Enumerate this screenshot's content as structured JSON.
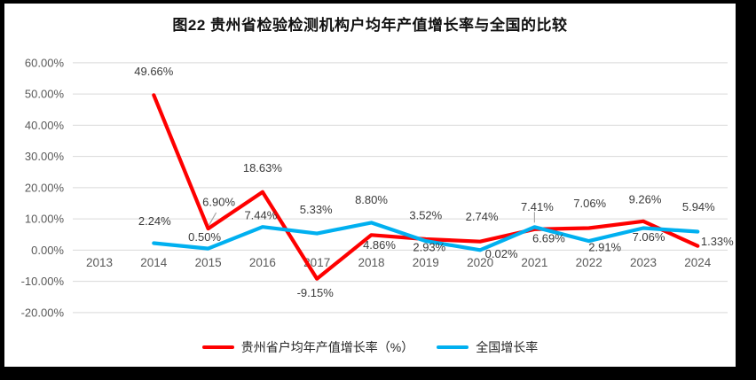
{
  "title": "图22 贵州省检验检测机构户均年产值增长率与全国的比较",
  "chart_data": {
    "type": "line",
    "title": "图22 贵州省检验检测机构户均年产值增长率与全国的比较",
    "categories": [
      "2013",
      "2014",
      "2015",
      "2016",
      "2017",
      "2018",
      "2019",
      "2020",
      "2021",
      "2022",
      "2023",
      "2024"
    ],
    "series": [
      {
        "name": "贵州省户均年产值增长率（%）",
        "color": "#FE0000",
        "values": [
          null,
          49.66,
          6.9,
          18.63,
          -9.15,
          4.86,
          3.52,
          2.74,
          6.69,
          7.06,
          9.26,
          1.33
        ],
        "labels": [
          null,
          "49.66%",
          "6.90%",
          "18.63%",
          "-9.15%",
          "4.86%",
          "3.52%",
          "2.74%",
          "6.69%",
          "7.06%",
          "9.26%",
          "1.33%"
        ]
      },
      {
        "name": "全国增长率",
        "color": "#00B0F0",
        "values": [
          null,
          2.24,
          0.5,
          7.44,
          5.33,
          8.8,
          2.93,
          0.02,
          7.41,
          2.91,
          7.06,
          5.94
        ],
        "labels": [
          null,
          "2.24%",
          "0.50%",
          "7.44%",
          "5.33%",
          "8.80%",
          "2.93%",
          "0.02%",
          "7.41%",
          "2.91%",
          "7.06%",
          "5.94%"
        ]
      }
    ],
    "xlabel": "",
    "ylabel": "",
    "ylim": [
      -20,
      60
    ],
    "grid": true,
    "legend_position": "bottom",
    "y_ticks": [
      {
        "value": 60,
        "label": "60.00%"
      },
      {
        "value": 50,
        "label": "50.00%"
      },
      {
        "value": 40,
        "label": "40.00%"
      },
      {
        "value": 30,
        "label": "30.00%"
      },
      {
        "value": 20,
        "label": "20.00%"
      },
      {
        "value": 10,
        "label": "10.00%"
      },
      {
        "value": 0,
        "label": "0.00%"
      },
      {
        "value": -10,
        "label": "-10.00%"
      },
      {
        "value": -20,
        "label": "-20.00%"
      }
    ]
  },
  "legend": {
    "items": [
      {
        "label": "贵州省户均年产值增长率（%）",
        "color": "#FE0000"
      },
      {
        "label": "全国增长率",
        "color": "#00B0F0"
      }
    ]
  },
  "colors": {
    "gridline": "#D9D9D9",
    "tick_text": "#595959",
    "data_label_text": "#3A3A3A",
    "leader_line": "#A6A6A6",
    "frame": "#000000",
    "background": "#FFFFFF"
  }
}
